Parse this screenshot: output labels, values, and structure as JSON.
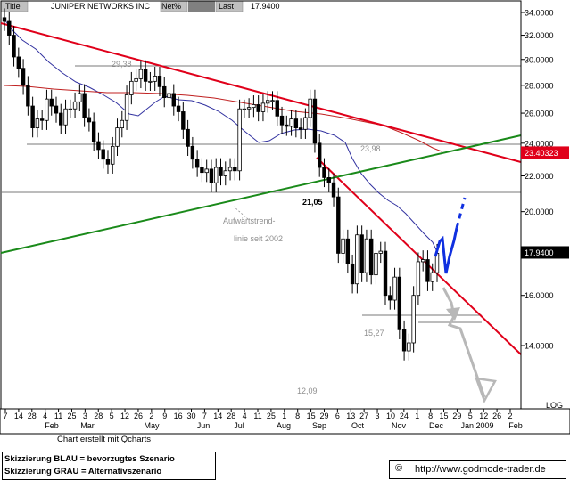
{
  "header": {
    "title_label": "Title",
    "title_value": "JUNIPER NETWORKS INC",
    "net_label": "Net%",
    "last_label": "Last",
    "last_value": "17.9400"
  },
  "chart_data": {
    "type": "candlestick",
    "title": "JUNIPER NETWORKS INC",
    "ylim": [
      11.0,
      34.4
    ],
    "yticks": [
      "14.0000",
      "16.0000",
      "18.0000",
      "20.0000",
      "22.0000",
      "24.0000",
      "26.0000",
      "28.0000",
      "30.0000",
      "32.0000",
      "34.0000"
    ],
    "scale_label": "LOG",
    "x_tick_days": [
      "7",
      "14",
      "28",
      "4",
      "11",
      "25",
      "3",
      "28",
      "5",
      "12",
      "26",
      "2",
      "9",
      "16",
      "30",
      "7",
      "14",
      "28",
      "4",
      "11",
      "25",
      "1",
      "8",
      "15",
      "29",
      "6",
      "13",
      "27",
      "3",
      "10",
      "24",
      "1",
      "8",
      "15",
      "29",
      "5",
      "12",
      "26",
      "2"
    ],
    "x_month_labels": [
      "Feb",
      "Mar",
      "May",
      "Jun",
      "Jul",
      "Aug",
      "Sep",
      "Oct",
      "Nov",
      "Dec",
      "Jan 2009",
      "Feb"
    ],
    "price_badges": [
      {
        "label": "23.40323",
        "value": 23.40323,
        "color": "#e0001a"
      },
      {
        "label": "17.9400",
        "value": 17.94,
        "color": "#000000"
      }
    ],
    "levels": [
      {
        "label": "29,38",
        "value": 29.38
      },
      {
        "label": "23,98",
        "value": 23.98
      },
      {
        "label": "21,05",
        "value": 21.05
      },
      {
        "label": "15,27",
        "value": 15.27
      },
      {
        "label": "12,09",
        "value": 12.09
      }
    ],
    "annotation": "Aufwärtstrend-\nlinie seit 2002",
    "credit": "Chart erstellt mit Qcharts",
    "series": [
      {
        "kind": "price",
        "close": [
          33.2,
          32.0,
          30.2,
          29.3,
          28.0,
          26.5,
          25.0,
          25.6,
          25.5,
          27.0,
          26.5,
          26.0,
          25.2,
          26.3,
          26.3,
          26.8,
          27.4,
          25.7,
          25.4,
          24.1,
          23.6,
          23.0,
          22.7,
          23.8,
          25.0,
          25.5,
          27.3,
          28.3,
          28.5,
          29.2,
          28.3,
          28.3,
          28.7,
          27.9,
          27.1,
          27.4,
          26.5,
          26.1,
          24.9,
          23.8,
          23.0,
          22.5,
          22.2,
          22.4,
          21.6,
          22.5,
          22.0,
          22.3,
          22.5,
          22.3,
          26.3,
          26.3,
          26.4,
          26.6,
          26.1,
          26.7,
          26.9,
          26.9,
          25.8,
          25.2,
          25.1,
          25.6,
          25.0,
          24.9,
          25.7,
          27.0,
          24.0,
          22.5,
          21.9,
          21.6,
          20.8,
          17.9,
          18.6,
          17.4,
          16.5,
          18.8,
          17.0,
          18.6,
          16.9,
          17.9,
          18.0,
          16.0,
          15.8,
          16.8,
          14.6,
          13.8,
          14.1,
          16.0,
          17.5,
          17.6,
          16.6,
          17.0,
          17.9
        ]
      },
      {
        "kind": "ma_short"
      },
      {
        "kind": "ma_long"
      }
    ],
    "trendlines": [
      {
        "name": "",
        "color": "#e0001a"
      },
      {
        "name": "",
        "color": "#1a8a1a"
      }
    ],
    "scenarios": [
      {
        "name": "Skizzierung BLAU = bevorzugtes Szenario",
        "color": "#1030e0"
      },
      {
        "name": "Skizzierung GRAU = Alternativszenario",
        "color": "#b0b0b0"
      }
    ]
  },
  "footer": {
    "credit": "Chart erstellt mit Qcharts",
    "legend_blue": "Skizzierung BLAU = bevorzugtes Szenario",
    "legend_grey": "Skizzierung GRAU = Alternativszenario",
    "copyright": "©",
    "url": "http://www.godmode-trader.de"
  }
}
